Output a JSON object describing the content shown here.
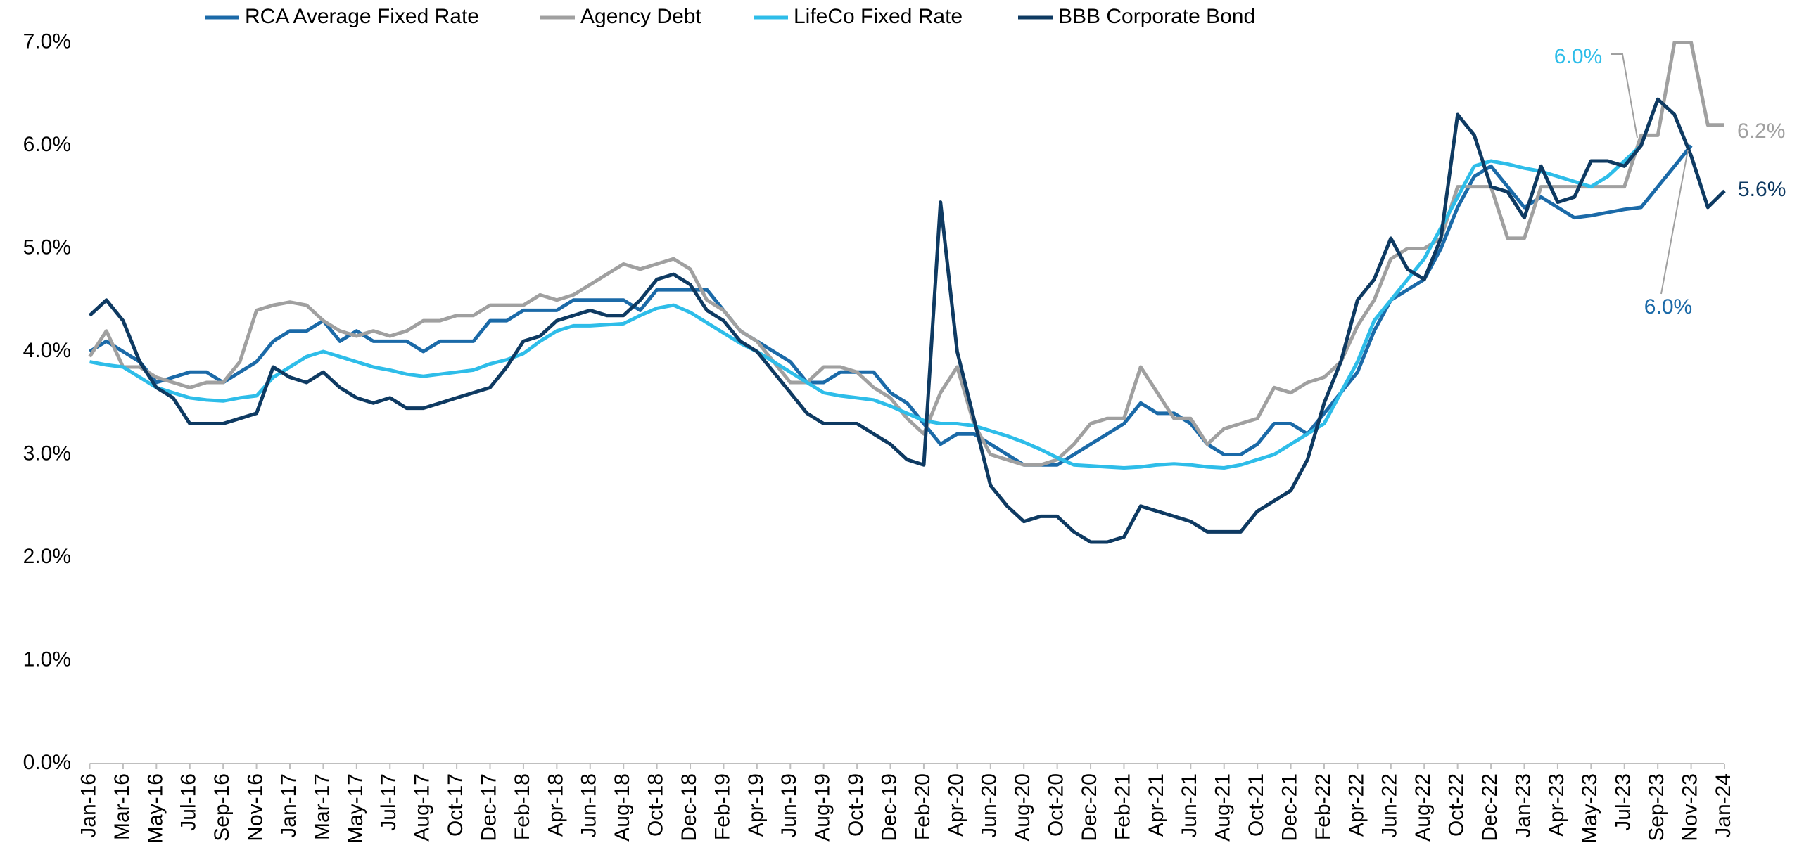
{
  "chart_data": {
    "type": "line",
    "categories": [
      "Jan-16",
      null,
      "Mar-16",
      null,
      "May-16",
      null,
      "Jul-16",
      null,
      "Sep-16",
      null,
      "Nov-16",
      null,
      "Jan-17",
      null,
      "Mar-17",
      null,
      "May-17",
      null,
      "Jul-17",
      null,
      "Aug-17",
      null,
      "Oct-17",
      null,
      "Dec-17",
      null,
      "Feb-18",
      null,
      "Apr-18",
      null,
      "Jun-18",
      null,
      "Aug-18",
      null,
      "Oct-18",
      null,
      "Dec-18",
      null,
      "Feb-19",
      null,
      "Apr-19",
      null,
      "Jun-19",
      null,
      "Aug-19",
      null,
      "Oct-19",
      null,
      "Dec-19",
      null,
      "Feb-20",
      null,
      "Apr-20",
      null,
      "Jun-20",
      null,
      "Aug-20",
      null,
      "Oct-20",
      null,
      "Dec-20",
      null,
      "Feb-21",
      null,
      "Apr-21",
      null,
      "Jun-21",
      null,
      "Aug-21",
      null,
      "Oct-21",
      null,
      "Dec-21",
      null,
      "Feb-22",
      null,
      "Apr-22",
      null,
      "Jun-22",
      null,
      "Aug-22",
      null,
      "Oct-22",
      null,
      "Dec-22",
      null,
      "Jan-23",
      null,
      "Apr-23",
      null,
      "May-23",
      null,
      "Jul-23",
      null,
      "Sep-23",
      null,
      "Nov-23",
      null,
      "Jan-24"
    ],
    "series": [
      {
        "name": "RCA Average Fixed Rate",
        "color": "#1b6aa8",
        "values": [
          4.0,
          4.1,
          4.0,
          3.9,
          3.7,
          3.75,
          3.8,
          3.8,
          3.7,
          3.8,
          3.9,
          4.1,
          4.2,
          4.2,
          4.3,
          4.1,
          4.2,
          4.1,
          4.1,
          4.1,
          4.0,
          4.1,
          4.1,
          4.1,
          4.3,
          4.3,
          4.4,
          4.4,
          4.4,
          4.5,
          4.5,
          4.5,
          4.5,
          4.4,
          4.6,
          4.6,
          4.6,
          4.6,
          4.4,
          4.2,
          4.1,
          4.0,
          3.9,
          3.7,
          3.7,
          3.8,
          3.8,
          3.8,
          3.6,
          3.5,
          3.3,
          3.1,
          3.2,
          3.2,
          3.1,
          3.0,
          2.9,
          2.9,
          2.9,
          3.0,
          3.1,
          3.2,
          3.3,
          3.5,
          3.4,
          3.4,
          3.3,
          3.1,
          3.0,
          3.0,
          3.1,
          3.3,
          3.3,
          3.2,
          3.4,
          3.6,
          3.8,
          4.2,
          4.5,
          4.6,
          4.7,
          5.0,
          5.4,
          5.7,
          5.8,
          5.6,
          5.4,
          5.5,
          5.4,
          5.3,
          5.32,
          5.35,
          5.38,
          5.4,
          5.6,
          5.8,
          6.0,
          null,
          null
        ]
      },
      {
        "name": "Agency Debt",
        "color": "#a0a0a0",
        "values": [
          3.95,
          4.2,
          3.85,
          3.85,
          3.75,
          3.7,
          3.65,
          3.7,
          3.7,
          3.9,
          4.4,
          4.45,
          4.48,
          4.45,
          4.3,
          4.2,
          4.15,
          4.2,
          4.15,
          4.2,
          4.3,
          4.3,
          4.35,
          4.35,
          4.45,
          4.45,
          4.45,
          4.55,
          4.5,
          4.55,
          4.65,
          4.75,
          4.85,
          4.8,
          4.85,
          4.9,
          4.8,
          4.5,
          4.4,
          4.2,
          4.1,
          3.9,
          3.7,
          3.7,
          3.85,
          3.85,
          3.8,
          3.65,
          3.55,
          3.35,
          3.2,
          3.6,
          3.85,
          3.3,
          3.0,
          2.95,
          2.9,
          2.9,
          2.95,
          3.1,
          3.3,
          3.35,
          3.35,
          3.85,
          3.6,
          3.35,
          3.35,
          3.1,
          3.25,
          3.3,
          3.35,
          3.65,
          3.6,
          3.7,
          3.75,
          3.9,
          4.25,
          4.5,
          4.9,
          5.0,
          5.0,
          5.1,
          5.6,
          5.6,
          5.6,
          5.1,
          5.1,
          5.6,
          5.6,
          5.6,
          5.6,
          5.6,
          5.6,
          6.1,
          6.1,
          7.0,
          7.0,
          6.2,
          6.2
        ]
      },
      {
        "name": "LifeCo Fixed Rate",
        "color": "#2ebde9",
        "values": [
          3.9,
          3.87,
          3.85,
          3.75,
          3.65,
          3.6,
          3.55,
          3.53,
          3.52,
          3.55,
          3.57,
          3.75,
          3.85,
          3.95,
          4.0,
          3.95,
          3.9,
          3.85,
          3.82,
          3.78,
          3.76,
          3.78,
          3.8,
          3.82,
          3.88,
          3.92,
          3.98,
          4.1,
          4.2,
          4.25,
          4.25,
          4.26,
          4.27,
          4.35,
          4.42,
          4.45,
          4.38,
          4.28,
          4.18,
          4.08,
          4.0,
          3.9,
          3.8,
          3.7,
          3.6,
          3.57,
          3.55,
          3.53,
          3.47,
          3.4,
          3.33,
          3.3,
          3.3,
          3.28,
          3.23,
          3.18,
          3.12,
          3.05,
          2.97,
          2.9,
          2.89,
          2.88,
          2.87,
          2.88,
          2.9,
          2.91,
          2.9,
          2.88,
          2.87,
          2.9,
          2.95,
          3.0,
          3.1,
          3.2,
          3.3,
          3.6,
          3.9,
          4.3,
          4.5,
          4.7,
          4.9,
          5.2,
          5.5,
          5.8,
          5.85,
          5.82,
          5.78,
          5.75,
          5.7,
          5.65,
          5.6,
          5.7,
          5.85,
          6.0,
          null,
          null,
          null,
          null,
          null
        ]
      },
      {
        "name": "BBB Corporate Bond",
        "color": "#0e3a62",
        "values": [
          4.35,
          4.5,
          4.3,
          3.9,
          3.65,
          3.55,
          3.3,
          3.3,
          3.3,
          3.35,
          3.4,
          3.85,
          3.75,
          3.7,
          3.8,
          3.65,
          3.55,
          3.5,
          3.55,
          3.45,
          3.45,
          3.5,
          3.55,
          3.6,
          3.65,
          3.85,
          4.1,
          4.15,
          4.3,
          4.35,
          4.4,
          4.35,
          4.35,
          4.5,
          4.7,
          4.75,
          4.65,
          4.4,
          4.3,
          4.1,
          4.0,
          3.8,
          3.6,
          3.4,
          3.3,
          3.3,
          3.3,
          3.2,
          3.1,
          2.95,
          2.9,
          5.45,
          4.0,
          3.35,
          2.7,
          2.5,
          2.35,
          2.4,
          2.4,
          2.25,
          2.15,
          2.15,
          2.2,
          2.5,
          2.45,
          2.4,
          2.35,
          2.25,
          2.25,
          2.25,
          2.45,
          2.55,
          2.65,
          2.95,
          3.5,
          3.9,
          4.5,
          4.7,
          5.1,
          4.8,
          4.7,
          5.1,
          6.3,
          6.1,
          5.6,
          5.55,
          5.3,
          5.8,
          5.45,
          5.5,
          5.85,
          5.85,
          5.8,
          6.0,
          6.45,
          6.3,
          5.9,
          5.4,
          5.56
        ]
      }
    ],
    "annotations": [
      {
        "text": "6.0%",
        "color": "#2ebde9"
      },
      {
        "text": "6.2%",
        "color": "#a0a0a0"
      },
      {
        "text": "5.6%",
        "color": "#0e3a62"
      },
      {
        "text": "6.0%",
        "color": "#1b6aa8"
      }
    ],
    "ylim": [
      0,
      7
    ],
    "yticks": [
      {
        "value": 0,
        "label": "0.0%"
      },
      {
        "value": 1,
        "label": "1.0%"
      },
      {
        "value": 2,
        "label": "2.0%"
      },
      {
        "value": 3,
        "label": "3.0%"
      },
      {
        "value": 4,
        "label": "4.0%"
      },
      {
        "value": 5,
        "label": "5.0%"
      },
      {
        "value": 6,
        "label": "6.0%"
      },
      {
        "value": 7,
        "label": "7.0%"
      }
    ],
    "grid": false,
    "legend": "top"
  }
}
